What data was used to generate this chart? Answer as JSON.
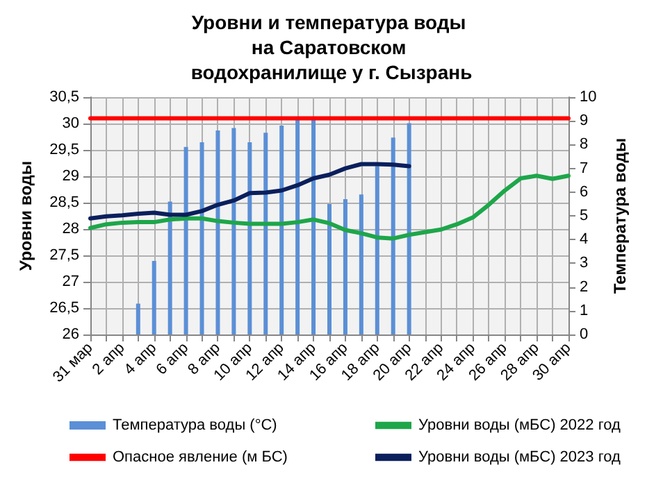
{
  "chart_data": {
    "type": "line",
    "title": "Уровни и температура воды на Саратовском водохранилище у г. Сызрань",
    "ylabel": "Уровни воды",
    "y2label": "Температура воды",
    "categories": [
      "31 мар",
      null,
      "2 апр",
      null,
      "4 апр",
      null,
      "6 апр",
      null,
      "8 апр",
      null,
      "10 апр",
      null,
      "12 апр",
      null,
      "14 апр",
      null,
      "16 апр",
      null,
      "18 апр",
      null,
      "20 апр",
      null,
      "22 апр",
      null,
      "24 апр",
      null,
      "26 апр",
      null,
      "28 апр",
      null,
      "30 апр"
    ],
    "series": [
      {
        "name": "Температура воды (°C)",
        "type": "bar",
        "axis": "y2",
        "color": "#5b8fd6",
        "values": [
          null,
          null,
          null,
          1.3,
          3.1,
          5.6,
          7.9,
          8.1,
          8.6,
          8.7,
          8.1,
          8.5,
          8.8,
          9.1,
          9.1,
          5.5,
          5.7,
          5.9,
          7.1,
          8.3,
          8.9,
          null,
          null,
          null,
          null,
          null,
          null,
          null,
          null,
          null,
          null
        ]
      },
      {
        "name": "Уровни воды (мБС) 2022 год",
        "color": "#1ea64a",
        "values": [
          28.02,
          28.09,
          28.12,
          28.13,
          28.13,
          28.18,
          28.2,
          28.2,
          28.15,
          28.12,
          28.1,
          28.1,
          28.1,
          28.13,
          28.18,
          28.11,
          27.98,
          27.92,
          27.84,
          27.82,
          27.89,
          27.94,
          27.99,
          28.09,
          28.22,
          28.46,
          28.73,
          28.96,
          29.01,
          28.95,
          29.01
        ]
      },
      {
        "name": "Опасное явление (м БС)",
        "color": "#ff0000",
        "values": [
          30.1,
          30.1,
          30.1,
          30.1,
          30.1,
          30.1,
          30.1,
          30.1,
          30.1,
          30.1,
          30.1,
          30.1,
          30.1,
          30.1,
          30.1,
          30.1,
          30.1,
          30.1,
          30.1,
          30.1,
          30.1,
          30.1,
          30.1,
          30.1,
          30.1,
          30.1,
          30.1,
          30.1,
          30.1,
          30.1,
          30.1
        ]
      },
      {
        "name": "Уровни воды (мБС) 2023 год",
        "color": "#0a1f5c",
        "values": [
          28.2,
          28.24,
          28.26,
          28.29,
          28.31,
          28.27,
          28.27,
          28.34,
          28.46,
          28.54,
          28.68,
          28.69,
          28.73,
          28.83,
          28.96,
          29.03,
          29.15,
          29.23,
          29.23,
          29.22,
          29.19,
          null,
          null,
          null,
          null,
          null,
          null,
          null,
          null,
          null,
          null
        ]
      }
    ],
    "ylim": [
      26,
      30.5
    ],
    "yticks": [
      26,
      {
        "value": 26.5,
        "label": "26,5"
      },
      27,
      {
        "value": 27.5,
        "label": "27,5"
      },
      28,
      {
        "value": 28.5,
        "label": "28,5"
      },
      29,
      {
        "value": 29.5,
        "label": "29,5"
      },
      30,
      {
        "value": 30.5,
        "label": "30,5"
      }
    ],
    "y2lim": [
      0,
      10
    ],
    "y2ticks": [
      0,
      1,
      2,
      3,
      4,
      5,
      6,
      7,
      8,
      9,
      10
    ],
    "grid": true,
    "legend": "bottom",
    "marker": "none",
    "line_style": "solid"
  }
}
